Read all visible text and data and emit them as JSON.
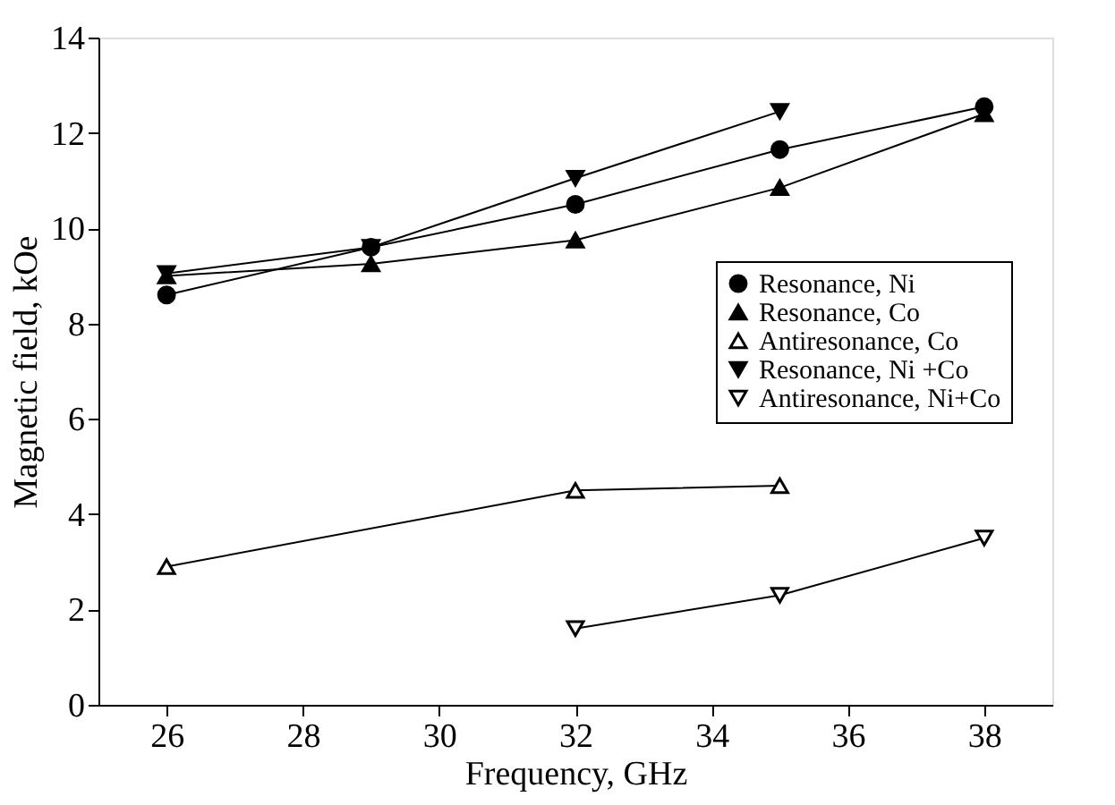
{
  "chart_data": {
    "type": "line",
    "xlabel": "Frequency, GHz",
    "ylabel": "Magnetic field, kOe",
    "xlim": [
      25,
      39
    ],
    "xticks": [
      26,
      28,
      30,
      32,
      34,
      36,
      38
    ],
    "ylim": [
      0,
      14
    ],
    "yticks": [
      0,
      2,
      4,
      6,
      8,
      10,
      12,
      14
    ],
    "grid": false,
    "legend": "right",
    "line_style": "solid",
    "series": [
      {
        "name": "Resonance, Ni",
        "color": "#000000",
        "marker": "circle",
        "x": [
          26,
          29,
          32,
          35,
          38
        ],
        "values": [
          8.6,
          9.6,
          10.5,
          11.65,
          12.55
        ]
      },
      {
        "name": "Resonance, Co",
        "color": "#000000",
        "marker": "triangle",
        "x": [
          26,
          29,
          32,
          35,
          38
        ],
        "values": [
          9.0,
          9.25,
          9.75,
          10.85,
          12.4
        ]
      },
      {
        "name": "Antiresonance, Co",
        "color": "#000000",
        "marker": "triangle-open",
        "x": [
          26,
          32,
          35
        ],
        "values": [
          2.9,
          4.5,
          4.6
        ]
      },
      {
        "name": "Resonance, Ni +Co",
        "color": "#000000",
        "marker": "triangle-down",
        "x": [
          26,
          29,
          32,
          35
        ],
        "values": [
          9.05,
          9.6,
          11.05,
          12.45
        ]
      },
      {
        "name": "Antiresonance, Ni+Co",
        "color": "#000000",
        "marker": "triangle-down-open",
        "x": [
          32,
          35,
          38
        ],
        "values": [
          1.6,
          2.3,
          3.5
        ]
      }
    ]
  }
}
